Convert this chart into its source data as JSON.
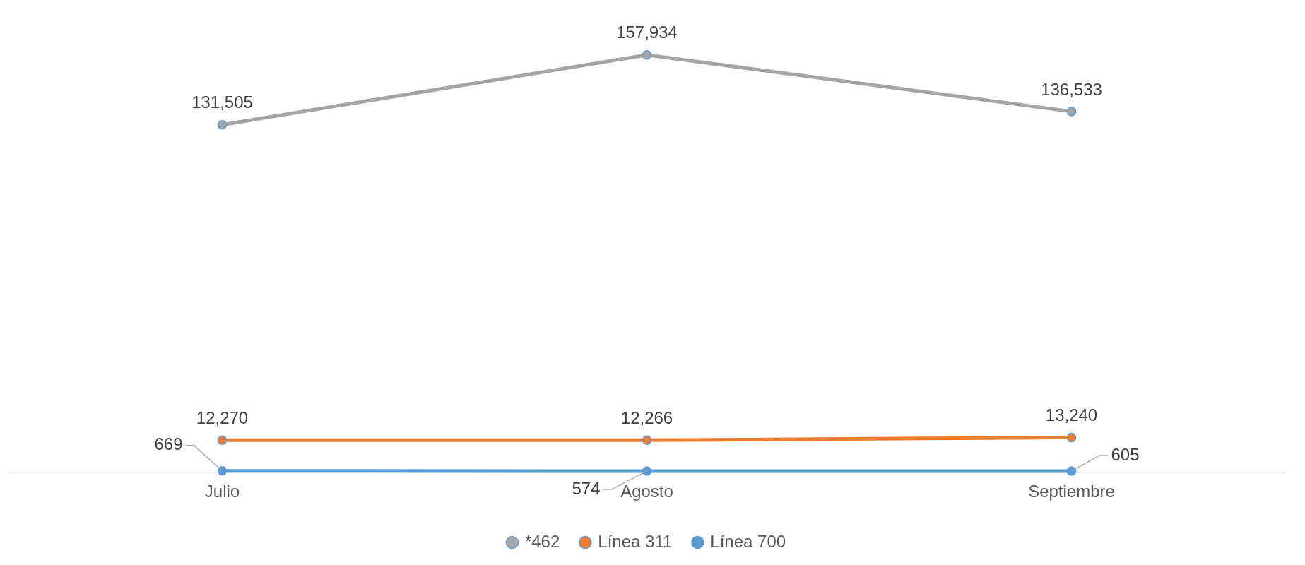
{
  "chart_data": {
    "type": "line",
    "categories": [
      "Julio",
      "Agosto",
      "Septiembre"
    ],
    "series": [
      {
        "name": "*462",
        "color": "#a5a5a5",
        "values": [
          131505,
          157934,
          136533
        ],
        "value_labels": [
          "131,505",
          "157,934",
          "136,533"
        ]
      },
      {
        "name": "Línea 311",
        "color": "#ed7d31",
        "values": [
          12270,
          12266,
          13240
        ],
        "value_labels": [
          "12,270",
          "12,266",
          "13,240"
        ]
      },
      {
        "name": "Línea 700",
        "color": "#5b9bd5",
        "values": [
          669,
          574,
          605
        ],
        "value_labels": [
          "669",
          "574",
          "605"
        ]
      }
    ],
    "legend": "bottom",
    "marker": "circle",
    "line_style": "solid",
    "grid": false
  }
}
